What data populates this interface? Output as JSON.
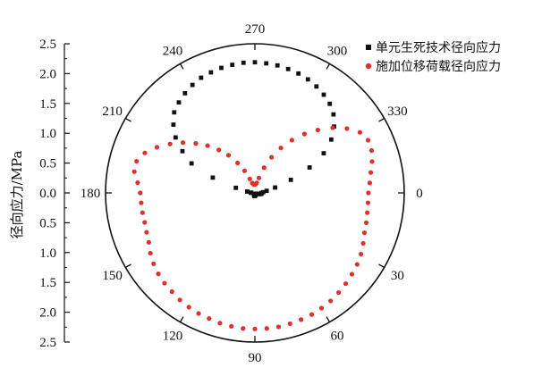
{
  "chart_data": {
    "type": "scatter",
    "projection": "polar",
    "ylabel": "径向应力/MPa",
    "r_range": [
      0,
      2.5
    ],
    "y_axis_ticks": [
      "2.5",
      "2.0",
      "1.5",
      "1.0",
      "0.5",
      "0.0",
      "0.5",
      "1.0",
      "1.5",
      "2.0",
      "2.5"
    ],
    "angle_ticks": [
      "0",
      "30",
      "60",
      "90",
      "120",
      "150",
      "180",
      "210",
      "240",
      "270",
      "300",
      "330"
    ],
    "angle_direction": "clockwise from right",
    "grid": false,
    "legend_position": "top-right",
    "series": [
      {
        "name": "单元生死技术径向应力",
        "marker": "square",
        "color": "#111111",
        "points": [
          [
            0,
            0.11
          ],
          [
            5,
            0.11
          ],
          [
            10,
            0.1
          ],
          [
            15,
            0.08
          ],
          [
            20,
            0.05
          ],
          [
            25,
            0.03
          ],
          [
            65,
            0.02
          ],
          [
            75,
            0.03
          ],
          [
            80,
            0.04
          ],
          [
            85,
            0.04
          ],
          [
            90,
            0.05
          ],
          [
            95,
            0.05
          ],
          [
            100,
            0.05
          ],
          [
            105,
            0.04
          ],
          [
            110,
            0.04
          ],
          [
            115,
            0.03
          ],
          [
            125,
            0.02
          ],
          [
            180,
            0.06
          ],
          [
            185,
            0.07
          ],
          [
            190,
            0.13
          ],
          [
            195,
            0.33
          ],
          [
            200,
            0.75
          ],
          [
            205,
            1.17
          ],
          [
            210,
            1.4
          ],
          [
            215,
            1.62
          ],
          [
            220,
            1.78
          ],
          [
            225,
            1.91
          ],
          [
            230,
            1.98
          ],
          [
            235,
            2.04
          ],
          [
            240,
            2.09
          ],
          [
            245,
            2.13
          ],
          [
            250,
            2.15
          ],
          [
            255,
            2.17
          ],
          [
            260,
            2.18
          ],
          [
            265,
            2.19
          ],
          [
            270,
            2.19
          ],
          [
            275,
            2.18
          ],
          [
            280,
            2.17
          ],
          [
            285,
            2.15
          ],
          [
            290,
            2.13
          ],
          [
            295,
            2.1
          ],
          [
            300,
            2.06
          ],
          [
            305,
            2.01
          ],
          [
            310,
            1.95
          ],
          [
            315,
            1.86
          ],
          [
            320,
            1.73
          ],
          [
            325,
            1.56
          ],
          [
            330,
            1.33
          ],
          [
            335,
            1.01
          ],
          [
            340,
            0.64
          ],
          [
            345,
            0.35
          ],
          [
            350,
            0.2
          ],
          [
            355,
            0.14
          ]
        ]
      },
      {
        "name": "施加位移荷载径向应力",
        "marker": "circle",
        "color": "#e0302b",
        "points": [
          [
            0,
            1.9
          ],
          [
            5,
            1.9
          ],
          [
            10,
            1.91
          ],
          [
            15,
            1.93
          ],
          [
            20,
            1.95
          ],
          [
            25,
            2.0
          ],
          [
            30,
            2.05
          ],
          [
            35,
            2.09
          ],
          [
            40,
            2.12
          ],
          [
            45,
            2.15
          ],
          [
            50,
            2.18
          ],
          [
            55,
            2.21
          ],
          [
            60,
            2.23
          ],
          [
            65,
            2.25
          ],
          [
            70,
            2.26
          ],
          [
            75,
            2.27
          ],
          [
            80,
            2.28
          ],
          [
            85,
            2.28
          ],
          [
            90,
            2.28
          ],
          [
            95,
            2.28
          ],
          [
            100,
            2.27
          ],
          [
            105,
            2.26
          ],
          [
            110,
            2.24
          ],
          [
            115,
            2.23
          ],
          [
            120,
            2.21
          ],
          [
            125,
            2.19
          ],
          [
            130,
            2.16
          ],
          [
            135,
            2.14
          ],
          [
            140,
            2.11
          ],
          [
            145,
            2.07
          ],
          [
            150,
            2.02
          ],
          [
            155,
            1.96
          ],
          [
            160,
            1.93
          ],
          [
            165,
            1.91
          ],
          [
            170,
            1.91
          ],
          [
            175,
            1.91
          ],
          [
            180,
            1.92
          ],
          [
            185,
            1.97
          ],
          [
            190,
            2.05
          ],
          [
            195,
            2.05
          ],
          [
            200,
            1.96
          ],
          [
            205,
            1.81
          ],
          [
            210,
            1.64
          ],
          [
            215,
            1.47
          ],
          [
            220,
            1.29
          ],
          [
            225,
            1.12
          ],
          [
            230,
            0.94
          ],
          [
            235,
            0.77
          ],
          [
            240,
            0.58
          ],
          [
            245,
            0.41
          ],
          [
            250,
            0.25
          ],
          [
            255,
            0.17
          ],
          [
            260,
            0.15
          ],
          [
            265,
            0.14
          ],
          [
            270,
            0.14
          ],
          [
            275,
            0.15
          ],
          [
            280,
            0.17
          ],
          [
            285,
            0.26
          ],
          [
            290,
            0.45
          ],
          [
            295,
            0.66
          ],
          [
            300,
            0.87
          ],
          [
            305,
            1.08
          ],
          [
            310,
            1.29
          ],
          [
            315,
            1.49
          ],
          [
            320,
            1.7
          ],
          [
            325,
            1.88
          ],
          [
            330,
            2.03
          ],
          [
            335,
            2.09
          ],
          [
            340,
            2.08
          ],
          [
            345,
            2.03
          ],
          [
            350,
            1.97
          ],
          [
            355,
            1.93
          ]
        ]
      }
    ]
  }
}
